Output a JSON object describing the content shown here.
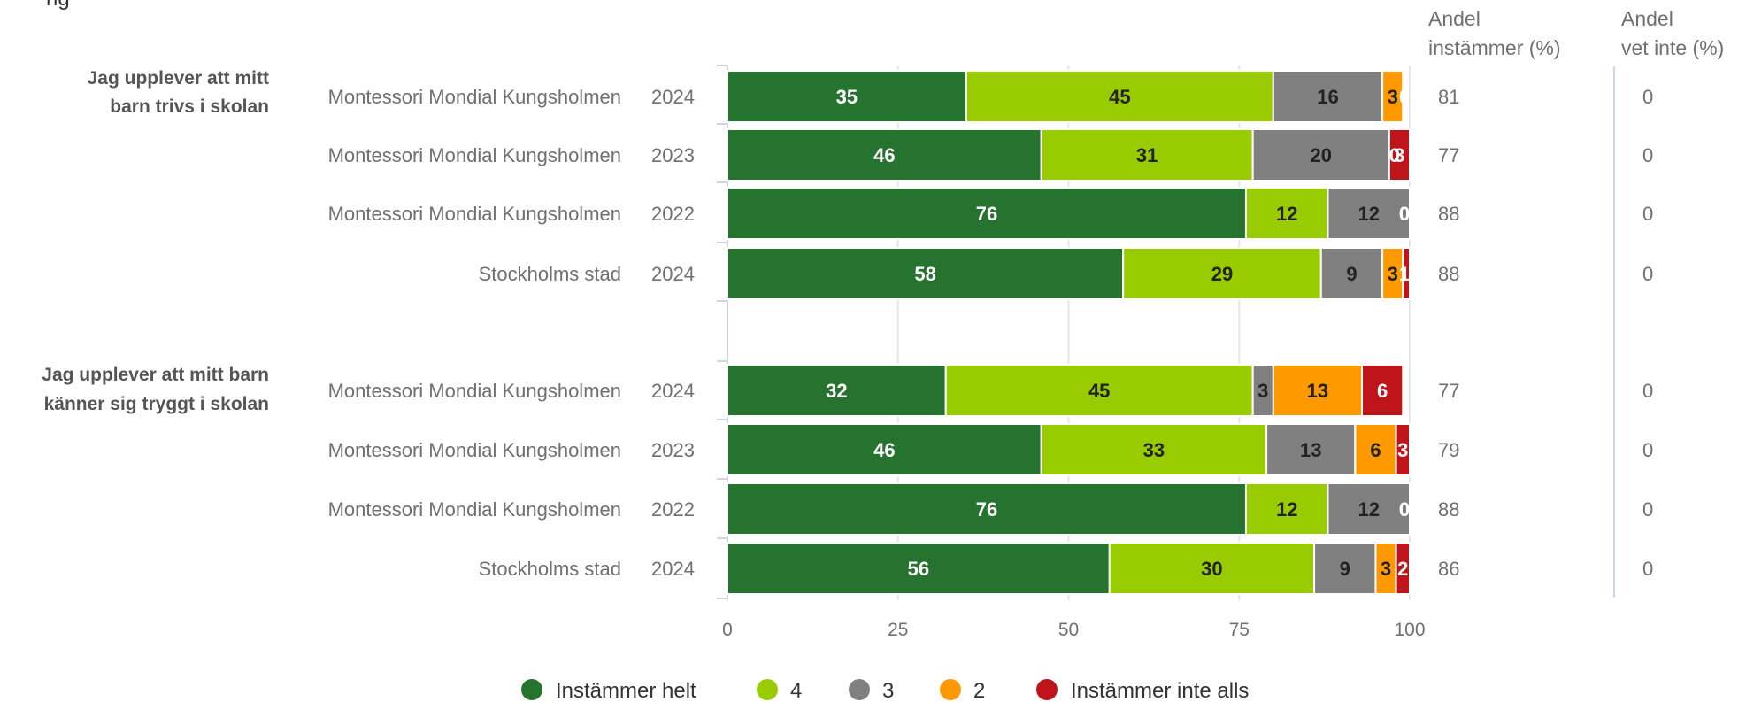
{
  "chart_data": {
    "type": "bar",
    "orientation": "horizontal",
    "stacked": true,
    "xlim": [
      0,
      100
    ],
    "x_ticks": [
      "0",
      "25",
      "50",
      "75",
      "100"
    ],
    "grid": true,
    "legend_position": "bottom",
    "title_fragment": "ng",
    "columns": {
      "col1_line1": "Andel",
      "col1_line2": "instämmer (%)",
      "col2_line1": "Andel",
      "col2_line2": "vet inte (%)"
    },
    "series": [
      {
        "name": "Instämmer helt",
        "color": "#267330",
        "text_color": "#ffffff"
      },
      {
        "name": "4",
        "color": "#99cc00",
        "text_color": "#222222"
      },
      {
        "name": "3",
        "color": "#808080",
        "text_color": "#222222"
      },
      {
        "name": "2",
        "color": "#ff9900",
        "text_color": "#222222"
      },
      {
        "name": "Instämmer inte alls",
        "color": "#c0141b",
        "text_color": "#ffffff"
      }
    ],
    "groups": [
      {
        "label_line1": "Jag upplever att mitt",
        "label_line2": "barn trivs i skolan",
        "rows": [
          {
            "school": "Montessori Mondial Kungsholmen",
            "year": "2024",
            "values": [
              35,
              45,
              16,
              3,
              0
            ],
            "andel_instammer": "81",
            "andel_vet_inte": "0"
          },
          {
            "school": "Montessori Mondial Kungsholmen",
            "year": "2023",
            "values": [
              46,
              31,
              20,
              0,
              3
            ],
            "andel_instammer": "77",
            "andel_vet_inte": "0"
          },
          {
            "school": "Montessori Mondial Kungsholmen",
            "year": "2022",
            "values": [
              76,
              12,
              12,
              0,
              0
            ],
            "andel_instammer": "88",
            "andel_vet_inte": "0"
          },
          {
            "school": "Stockholms stad",
            "year": "2024",
            "values": [
              58,
              29,
              9,
              3,
              1
            ],
            "andel_instammer": "88",
            "andel_vet_inte": "0"
          }
        ]
      },
      {
        "label_line1": "Jag upplever att mitt barn",
        "label_line2": "känner sig tryggt i skolan",
        "rows": [
          {
            "school": "Montessori Mondial Kungsholmen",
            "year": "2024",
            "values": [
              32,
              45,
              3,
              13,
              6
            ],
            "andel_instammer": "77",
            "andel_vet_inte": "0"
          },
          {
            "school": "Montessori Mondial Kungsholmen",
            "year": "2023",
            "values": [
              46,
              33,
              13,
              6,
              3
            ],
            "andel_instammer": "79",
            "andel_vet_inte": "0"
          },
          {
            "school": "Montessori Mondial Kungsholmen",
            "year": "2022",
            "values": [
              76,
              12,
              12,
              0,
              0
            ],
            "andel_instammer": "88",
            "andel_vet_inte": "0"
          },
          {
            "school": "Stockholms stad",
            "year": "2024",
            "values": [
              56,
              30,
              9,
              3,
              2
            ],
            "andel_instammer": "86",
            "andel_vet_inte": "0"
          }
        ]
      }
    ]
  }
}
